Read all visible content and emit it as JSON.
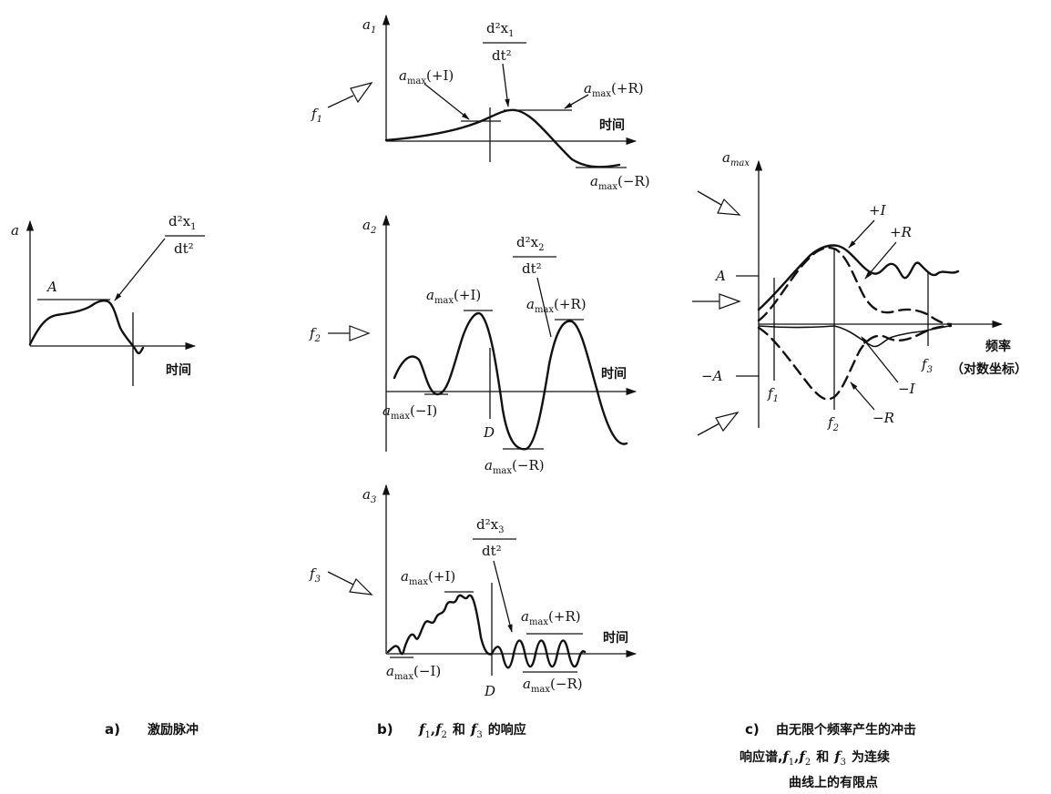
{
  "panel_a": {
    "y_axis": "a",
    "x_axis": "时间",
    "level": "A",
    "d2x": "d²x",
    "d2x_sub": "1",
    "dt2": "dt²",
    "caption_letter": "a)",
    "caption": "激励脉冲"
  },
  "panel_b": {
    "f1": {
      "y_axis_base": "a",
      "y_axis_sub": "1",
      "f": "f",
      "f_sub": "1",
      "d2x": "d²x",
      "d2x_sub": "1",
      "dt2": "dt²",
      "plus_i": "(+I)",
      "plus_r": "(+R)",
      "minus_r": "(−R)",
      "x_axis": "时间"
    },
    "f2": {
      "y_axis_base": "a",
      "y_axis_sub": "2",
      "f": "f",
      "f_sub": "2",
      "d2x": "d²x",
      "d2x_sub": "2",
      "dt2": "dt²",
      "plus_i": "(+I)",
      "plus_r": "(+R)",
      "minus_i": "(−I)",
      "minus_r": "(−R)",
      "d_mark": "D",
      "x_axis": "时间"
    },
    "f3": {
      "y_axis_base": "a",
      "y_axis_sub": "3",
      "f": "f",
      "f_sub": "3",
      "d2x": "d²x",
      "d2x_sub": "3",
      "dt2": "dt²",
      "plus_i": "(+I)",
      "plus_r": "(+R)",
      "minus_i": "(−I)",
      "minus_r": "(−R)",
      "d_mark": "D",
      "x_axis": "时间"
    },
    "amax_base": "a",
    "amax_sub": "max",
    "caption_letter": "b)",
    "caption_f": "f",
    "sub1": "1",
    "sub2": "2",
    "sub3": "3",
    "comma": ",",
    "he": "和",
    "caption_tail": "的响应"
  },
  "panel_c": {
    "y_axis_base": "a",
    "y_axis_sub": "max",
    "plus_level": "A",
    "minus_level": "−A",
    "x_axis_line1": "频率",
    "x_axis_line2": "（对数坐标）",
    "f": "f",
    "sub1": "1",
    "sub2": "2",
    "sub3": "3",
    "plus_i": "+I",
    "plus_r": "+R",
    "minus_i": "−I",
    "minus_r": "−R",
    "caption_letter": "c)",
    "caption_line1": "由无限个频率产生的冲击",
    "caption_line2_pre": "响应谱,",
    "comma": ",",
    "he": "和",
    "caption_line2_post": "为连续",
    "caption_line3": "曲线上的有限点"
  }
}
